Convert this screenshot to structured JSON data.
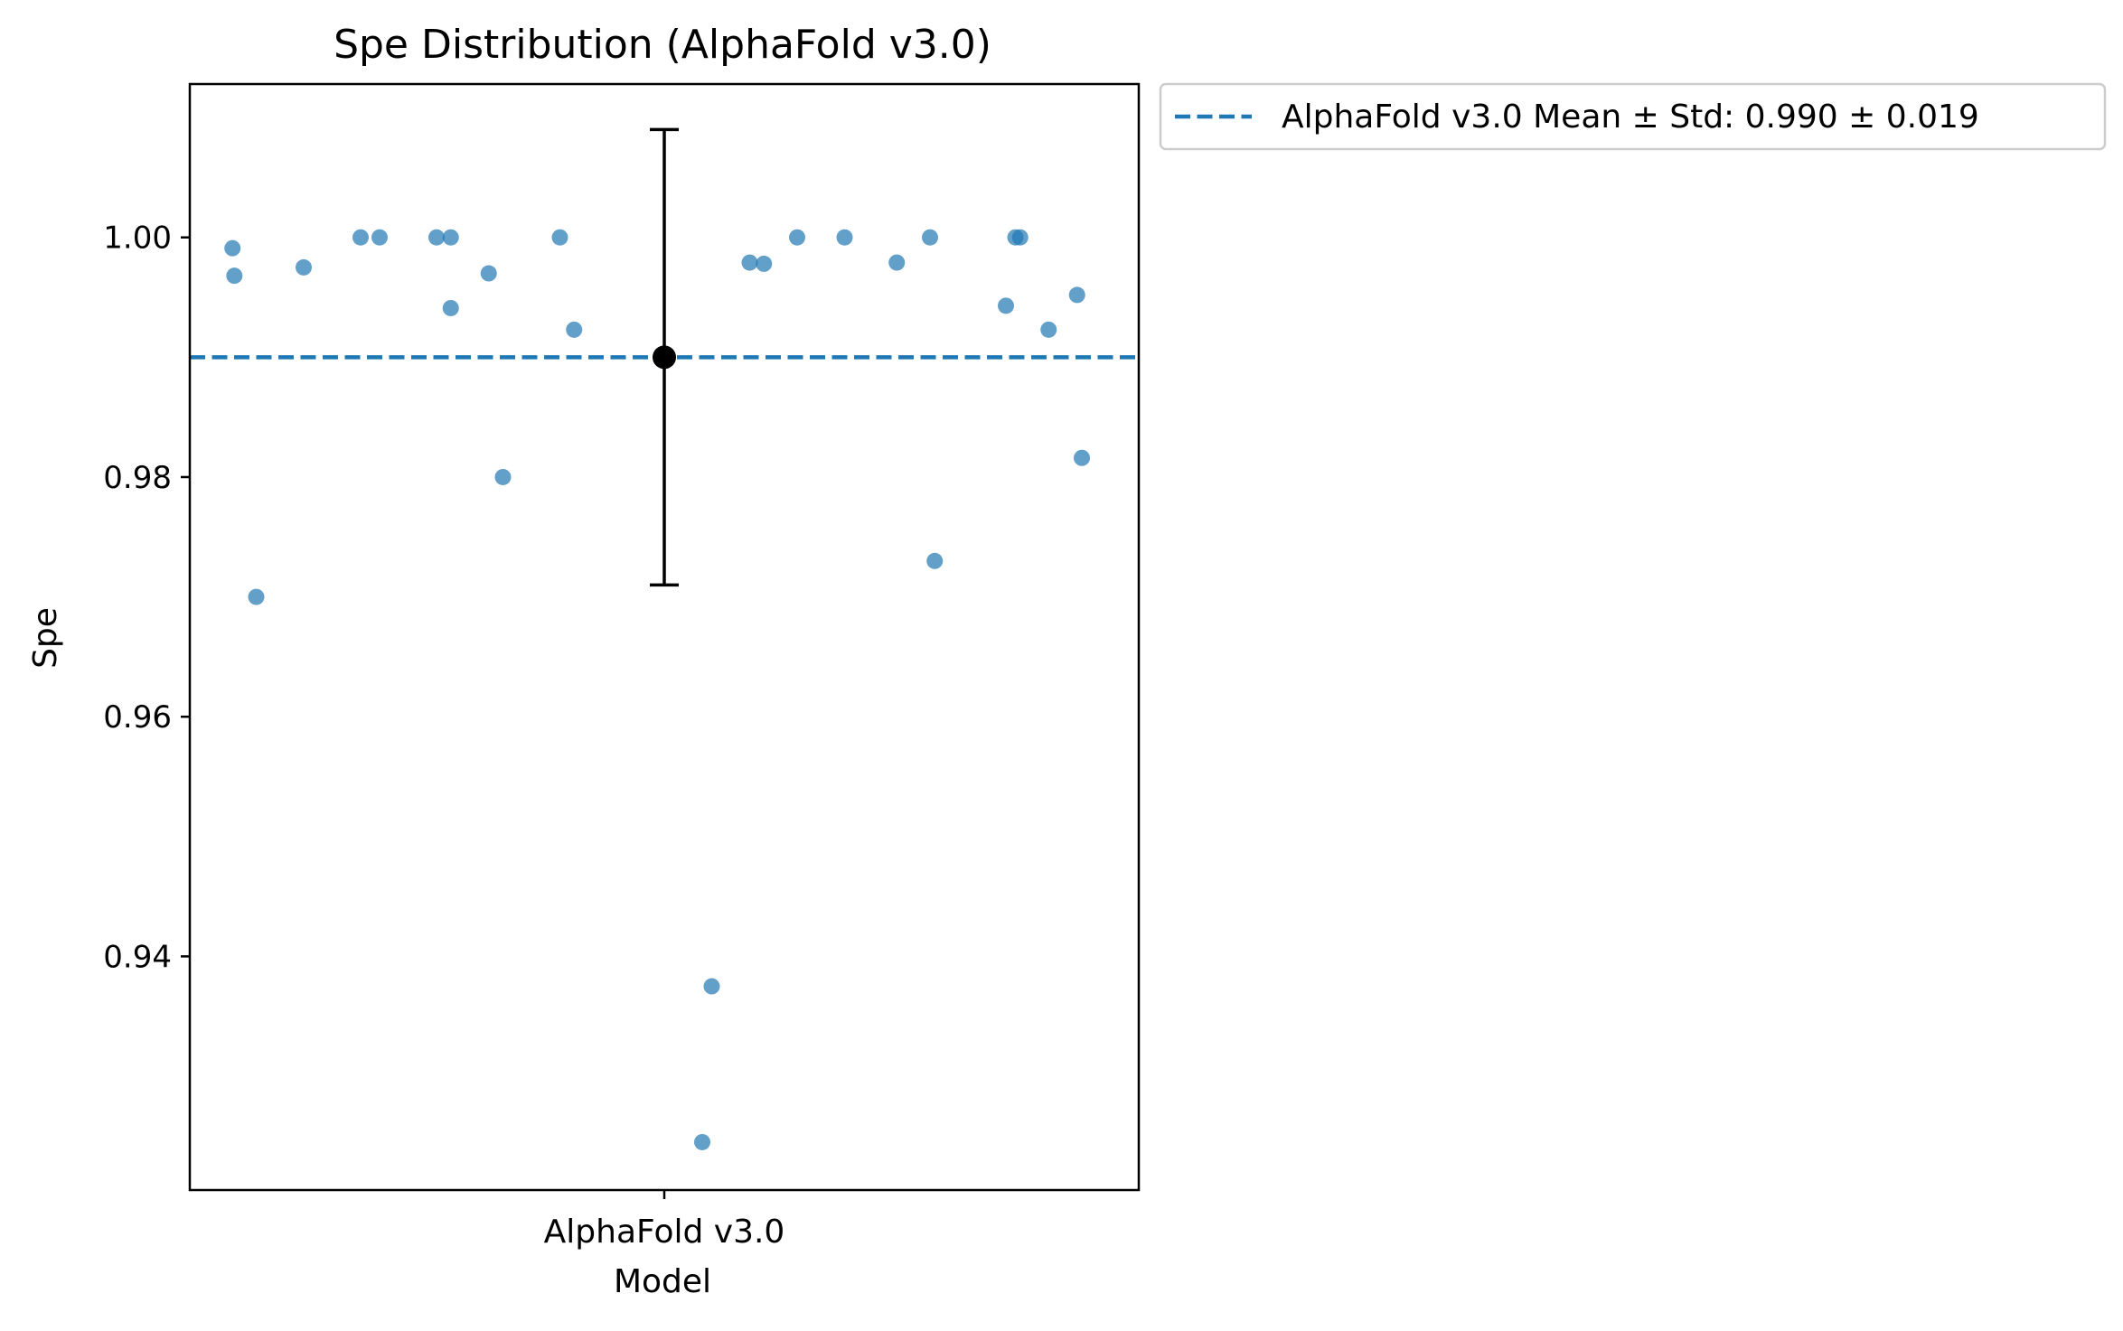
{
  "chart_data": {
    "type": "scatter",
    "title": "Spe Distribution (AlphaFold v3.0)",
    "xlabel": "Model",
    "ylabel": "Spe",
    "categories": [
      "AlphaFold v3.0"
    ],
    "ylim": [
      0.9205,
      1.0128
    ],
    "yticks": [
      0.94,
      0.96,
      0.98,
      1.0
    ],
    "ytick_labels": [
      "0.94",
      "0.96",
      "0.98",
      "1.00"
    ],
    "grid": false,
    "legend_position": "outside-top-right",
    "legend": [
      {
        "label": "AlphaFold v3.0 Mean ± Std: 0.990 ± 0.019",
        "style": "dashed-line",
        "color": "#1f77b4"
      }
    ],
    "mean": 0.99,
    "std": 0.019,
    "mean_line_color": "#1f77b4",
    "point_color": "#1f77b4",
    "errorbar_color": "#000000",
    "series": [
      {
        "values": [
          {
            "x": -0.455,
            "y": 0.9991
          },
          {
            "x": -0.453,
            "y": 0.9968
          },
          {
            "x": -0.43,
            "y": 0.97
          },
          {
            "x": -0.38,
            "y": 0.9975
          },
          {
            "x": -0.32,
            "y": 1.0
          },
          {
            "x": -0.3,
            "y": 1.0
          },
          {
            "x": -0.24,
            "y": 1.0
          },
          {
            "x": -0.225,
            "y": 1.0
          },
          {
            "x": -0.225,
            "y": 0.9941
          },
          {
            "x": -0.185,
            "y": 0.997
          },
          {
            "x": -0.17,
            "y": 0.98
          },
          {
            "x": -0.11,
            "y": 1.0
          },
          {
            "x": -0.095,
            "y": 0.9923
          },
          {
            "x": 0.04,
            "y": 0.9245
          },
          {
            "x": 0.05,
            "y": 0.9375
          },
          {
            "x": 0.09,
            "y": 0.9979
          },
          {
            "x": 0.105,
            "y": 0.9978
          },
          {
            "x": 0.14,
            "y": 1.0
          },
          {
            "x": 0.19,
            "y": 1.0
          },
          {
            "x": 0.245,
            "y": 0.9979
          },
          {
            "x": 0.28,
            "y": 1.0
          },
          {
            "x": 0.285,
            "y": 0.973
          },
          {
            "x": 0.36,
            "y": 0.9943
          },
          {
            "x": 0.37,
            "y": 1.0
          },
          {
            "x": 0.375,
            "y": 1.0
          },
          {
            "x": 0.405,
            "y": 0.9923
          },
          {
            "x": 0.435,
            "y": 0.9952
          },
          {
            "x": 0.44,
            "y": 0.9816
          }
        ]
      }
    ]
  }
}
